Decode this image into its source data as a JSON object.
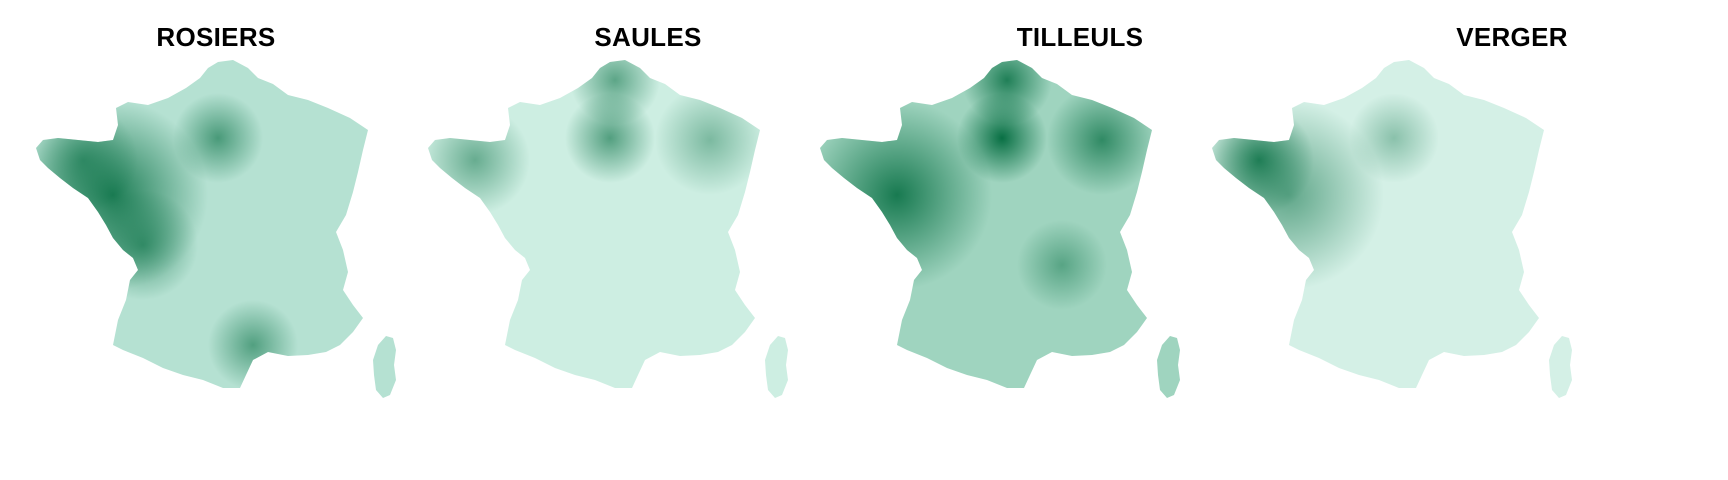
{
  "panels": [
    {
      "title": "ROSIERS",
      "base": "#b5e1d2",
      "hotspots": [
        {
          "where": "west",
          "strength": 0.85
        },
        {
          "where": "paris",
          "strength": 0.6
        },
        {
          "where": "southwest",
          "strength": 0.6
        },
        {
          "where": "south-coast",
          "strength": 0.55
        },
        {
          "where": "brittany",
          "strength": 0.55
        }
      ]
    },
    {
      "title": "SAULES",
      "base": "#cdeee2",
      "hotspots": [
        {
          "where": "paris",
          "strength": 0.6
        },
        {
          "where": "north",
          "strength": 0.55
        },
        {
          "where": "brittany",
          "strength": 0.5
        },
        {
          "where": "northeast",
          "strength": 0.4
        }
      ]
    },
    {
      "title": "TILLEULS",
      "base": "#9fd4bf",
      "hotspots": [
        {
          "where": "paris",
          "strength": 0.95
        },
        {
          "where": "west",
          "strength": 0.85
        },
        {
          "where": "north",
          "strength": 0.8
        },
        {
          "where": "northeast",
          "strength": 0.7
        },
        {
          "where": "lyon",
          "strength": 0.45
        }
      ]
    },
    {
      "title": "VERGER",
      "base": "#d4f0e6",
      "hotspots": [
        {
          "where": "brittany",
          "strength": 0.8
        },
        {
          "where": "west",
          "strength": 0.55
        },
        {
          "where": "paris",
          "strength": 0.35
        }
      ]
    }
  ],
  "colors": {
    "dark": "#006a3d",
    "light": "#e3f5ee"
  }
}
